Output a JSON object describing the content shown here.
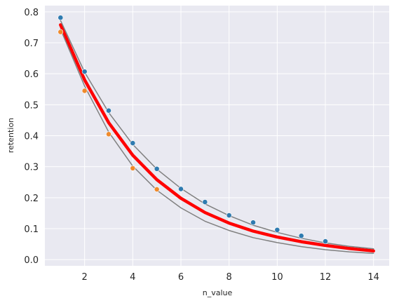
{
  "chart_data": {
    "type": "scatter",
    "title": "",
    "xlabel": "n_value",
    "ylabel": "retention",
    "xlim": [
      0.35,
      14.65
    ],
    "ylim": [
      -0.02,
      0.82
    ],
    "grid": true,
    "background": "#e9e9f1",
    "x_ticks": [
      2,
      4,
      6,
      8,
      10,
      12,
      14
    ],
    "x_tick_labels": [
      "2",
      "4",
      "6",
      "8",
      "10",
      "12",
      "14"
    ],
    "y_ticks": [
      0.0,
      0.1,
      0.2,
      0.3,
      0.4,
      0.5,
      0.6,
      0.7,
      0.8
    ],
    "y_tick_labels": [
      "0.0",
      "0.1",
      "0.2",
      "0.3",
      "0.4",
      "0.5",
      "0.6",
      "0.7",
      "0.8"
    ],
    "series": [
      {
        "kind": "points",
        "color": "#2f7bb0",
        "x": [
          1,
          2,
          3,
          4,
          5,
          6,
          7,
          8,
          9,
          10,
          11,
          12
        ],
        "y": [
          0.781,
          0.607,
          0.481,
          0.376,
          0.293,
          0.228,
          0.186,
          0.143,
          0.12,
          0.096,
          0.077,
          0.059
        ]
      },
      {
        "kind": "points",
        "color": "#ef8a2c",
        "x": [
          1,
          2,
          3,
          4,
          5
        ],
        "y": [
          0.735,
          0.545,
          0.405,
          0.295,
          0.227
        ]
      },
      {
        "kind": "line",
        "color": "#ff0000",
        "width": 4.5,
        "x": [
          1,
          2,
          3,
          4,
          5,
          6,
          7,
          8,
          9,
          10,
          11,
          12,
          13,
          14
        ],
        "y": [
          0.758,
          0.58,
          0.442,
          0.337,
          0.258,
          0.198,
          0.152,
          0.118,
          0.092,
          0.073,
          0.058,
          0.046,
          0.036,
          0.028
        ]
      },
      {
        "kind": "line",
        "color": "#808080",
        "width": 1.5,
        "x": [
          1,
          2,
          3,
          4,
          5,
          6,
          7,
          8,
          9,
          10,
          11,
          12,
          13,
          14
        ],
        "y": [
          0.772,
          0.605,
          0.475,
          0.372,
          0.292,
          0.23,
          0.18,
          0.142,
          0.111,
          0.088,
          0.069,
          0.054,
          0.043,
          0.035
        ]
      },
      {
        "kind": "line",
        "color": "#808080",
        "width": 1.5,
        "x": [
          1,
          2,
          3,
          4,
          5,
          6,
          7,
          8,
          9,
          10,
          11,
          12,
          13,
          14
        ],
        "y": [
          0.744,
          0.56,
          0.412,
          0.302,
          0.224,
          0.167,
          0.124,
          0.094,
          0.071,
          0.055,
          0.042,
          0.032,
          0.025,
          0.02
        ]
      }
    ]
  }
}
